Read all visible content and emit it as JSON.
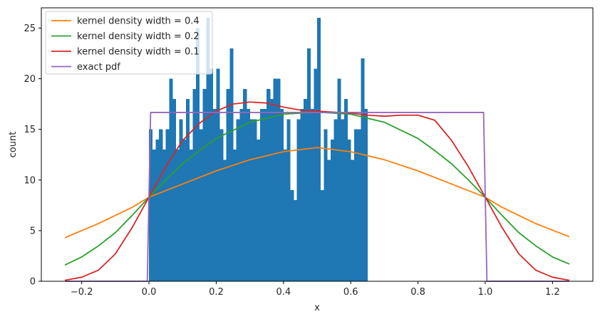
{
  "chart_data": {
    "type": "bar",
    "xlabel": "x",
    "ylabel": "count",
    "xlim": [
      -0.32,
      1.32
    ],
    "ylim": [
      0,
      27
    ],
    "grid": false,
    "legend_position": "top-left",
    "xticks": [
      -0.2,
      0.0,
      0.2,
      0.4,
      0.6,
      0.8,
      1.0,
      1.2
    ],
    "xtick_labels": [
      "−0.2",
      "0.0",
      "0.2",
      "0.4",
      "0.6",
      "0.8",
      "1.0",
      "1.2"
    ],
    "yticks": [
      0,
      5,
      10,
      15,
      20,
      25
    ],
    "ytick_labels": [
      "0",
      "5",
      "10",
      "15",
      "20",
      "25"
    ],
    "histogram": {
      "bin_start": 0.0,
      "bin_width": 0.01,
      "color": "#1f77b4",
      "counts": [
        15,
        13,
        14,
        15,
        13,
        15,
        20,
        18,
        13,
        16,
        14,
        18,
        13,
        19,
        25,
        15,
        19,
        26,
        21,
        17,
        21,
        15,
        12,
        19,
        23,
        13,
        16,
        17,
        19,
        17,
        16,
        16,
        14,
        17,
        17,
        19,
        18,
        20,
        20,
        17,
        13,
        16,
        9,
        8,
        16,
        17,
        18,
        23,
        17,
        21,
        26,
        9,
        15,
        12,
        14,
        16,
        20,
        16,
        18,
        14,
        12,
        15,
        15,
        22,
        17
      ]
    },
    "series": [
      {
        "name": "kernel density width = 0.4",
        "color": "#ff7f0e",
        "x": [
          -0.25,
          -0.15,
          -0.05,
          0.0,
          0.1,
          0.2,
          0.3,
          0.4,
          0.5,
          0.6,
          0.7,
          0.8,
          0.9,
          1.0,
          1.05,
          1.15,
          1.25
        ],
        "y": [
          4.3,
          5.7,
          7.3,
          8.3,
          9.6,
          10.9,
          12.0,
          12.8,
          13.2,
          12.8,
          12.0,
          10.9,
          9.6,
          8.3,
          7.3,
          5.7,
          4.4
        ]
      },
      {
        "name": "kernel density width = 0.2",
        "color": "#2ca02c",
        "x": [
          -0.25,
          -0.2,
          -0.15,
          -0.1,
          -0.05,
          0.0,
          0.05,
          0.1,
          0.15,
          0.2,
          0.3,
          0.4,
          0.5,
          0.6,
          0.7,
          0.8,
          0.85,
          0.9,
          0.95,
          1.0,
          1.05,
          1.1,
          1.15,
          1.2,
          1.25
        ],
        "y": [
          1.6,
          2.4,
          3.5,
          4.8,
          6.5,
          8.3,
          10.0,
          11.6,
          12.9,
          14.1,
          15.7,
          16.5,
          16.7,
          16.5,
          15.7,
          14.1,
          12.9,
          11.6,
          10.0,
          8.3,
          6.5,
          4.8,
          3.5,
          2.4,
          1.7
        ]
      },
      {
        "name": "kernel density width = 0.1",
        "color": "#d62728",
        "x": [
          -0.25,
          -0.2,
          -0.15,
          -0.1,
          -0.05,
          0.0,
          0.05,
          0.1,
          0.15,
          0.2,
          0.25,
          0.3,
          0.35,
          0.4,
          0.45,
          0.5,
          0.55,
          0.6,
          0.65,
          0.7,
          0.75,
          0.8,
          0.85,
          0.9,
          0.95,
          1.0,
          1.05,
          1.1,
          1.15,
          1.2,
          1.25
        ],
        "y": [
          0.1,
          0.4,
          1.1,
          2.7,
          5.3,
          8.3,
          11.3,
          13.9,
          15.6,
          16.8,
          17.5,
          17.7,
          17.6,
          17.2,
          16.9,
          16.8,
          16.7,
          16.6,
          16.4,
          16.3,
          16.4,
          16.4,
          15.9,
          13.9,
          11.3,
          8.3,
          5.3,
          2.7,
          1.1,
          0.4,
          0.1
        ]
      },
      {
        "name": "exact pdf",
        "color": "#9467bd",
        "x": [
          -0.25,
          -0.005,
          0.005,
          0.995,
          1.005,
          1.25
        ],
        "y": [
          0,
          0,
          16.67,
          16.67,
          0,
          0
        ]
      }
    ]
  }
}
